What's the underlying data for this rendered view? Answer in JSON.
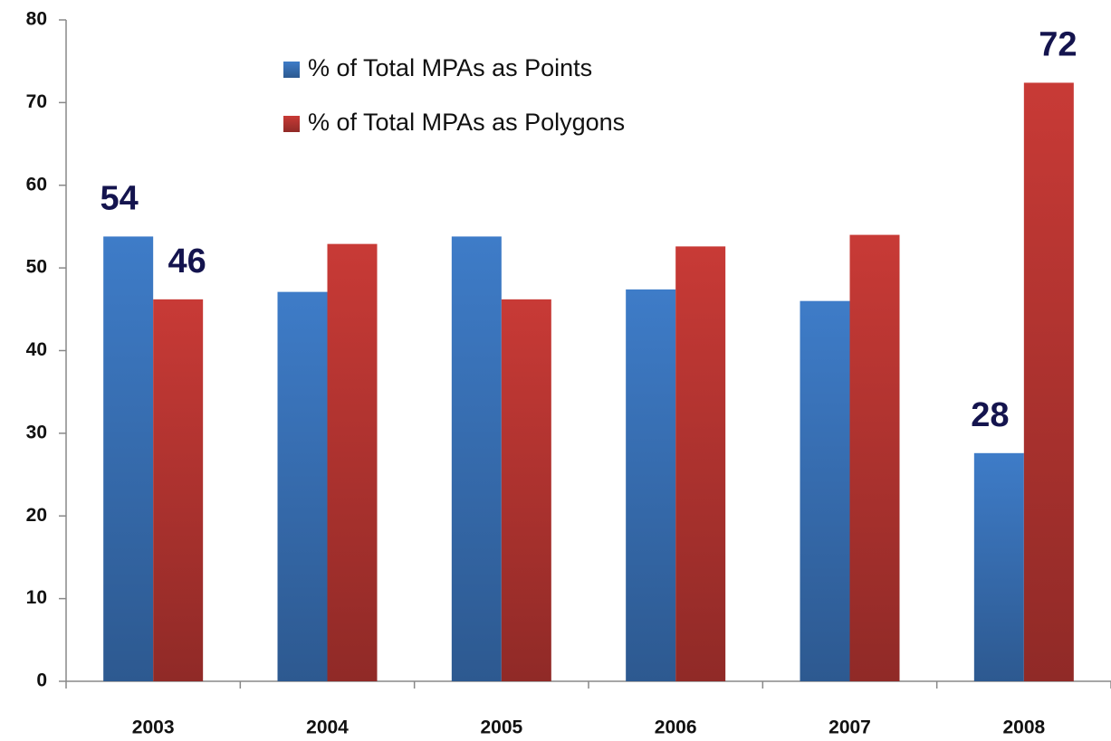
{
  "chart_data": {
    "type": "bar",
    "categories": [
      "2003",
      "2004",
      "2005",
      "2006",
      "2007",
      "2008"
    ],
    "series": [
      {
        "name": "% of Total MPAs as Points",
        "color": "#3e7cc8",
        "values": [
          53.8,
          47.1,
          53.8,
          47.4,
          46.0,
          27.6
        ],
        "value_labels": [
          "54",
          null,
          null,
          null,
          null,
          "28"
        ]
      },
      {
        "name": "% of Total MPAs as Polygons",
        "color": "#c83a36",
        "values": [
          46.2,
          52.9,
          46.2,
          52.6,
          54.0,
          72.4
        ],
        "value_labels": [
          "46",
          null,
          null,
          null,
          null,
          "72"
        ]
      }
    ],
    "ylim": [
      0,
      80
    ],
    "yticks": [
      0,
      10,
      20,
      30,
      40,
      50,
      60,
      70,
      80
    ],
    "grid": false,
    "legend": "top-left"
  }
}
